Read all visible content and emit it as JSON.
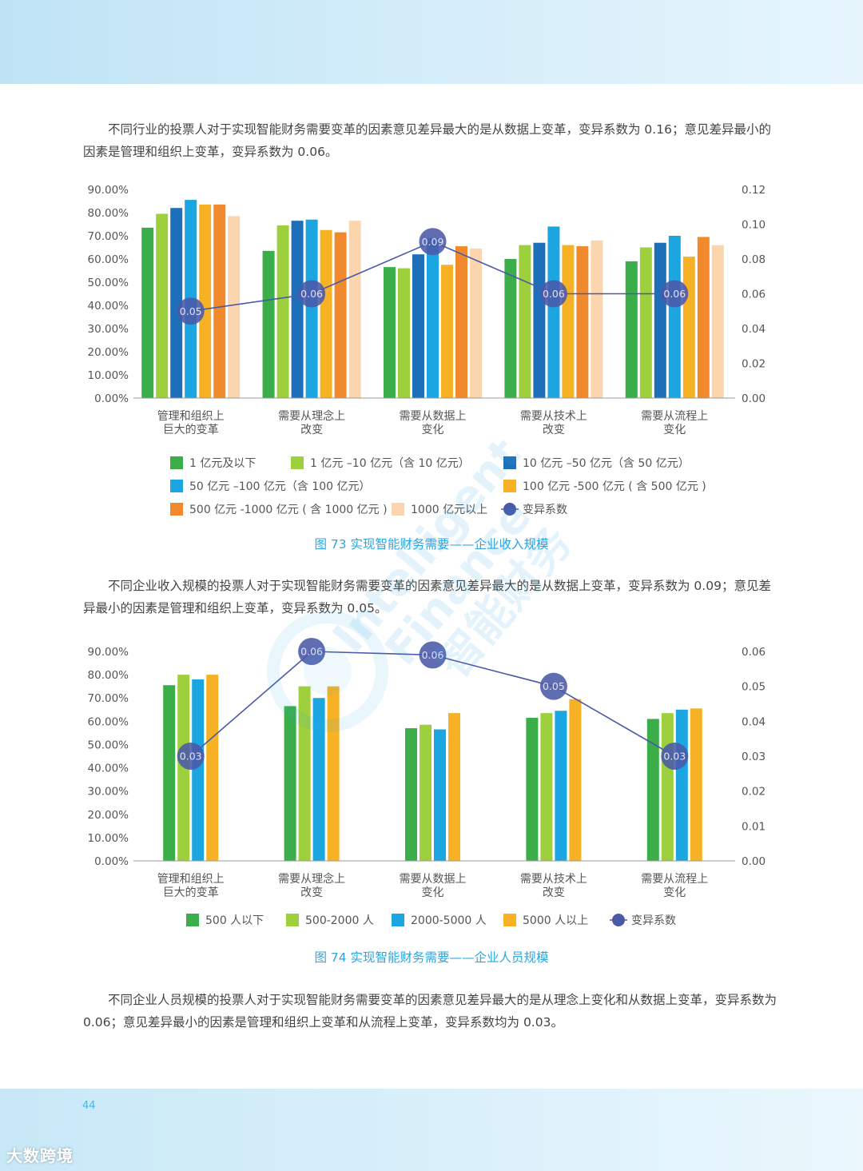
{
  "page_number": "44",
  "logo_text": "大数跨境",
  "watermark": {
    "line1": "Intelligent",
    "line2": "Finance",
    "line3": "智能财务"
  },
  "paragraphs": {
    "p1": "不同行业的投票人对于实现智能财务需要变革的因素意见差异最大的是从数据上变革，变异系数为 0.16；意见差异最小的因素是管理和组织上变革，变异系数为 0.06。",
    "p2": "不同企业收入规模的投票人对于实现智能财务需要变革的因素意见差异最大的是从数据上变革，变异系数为 0.09；意见差异最小的因素是管理和组织上变革，变异系数为 0.05。",
    "p3": "不同企业人员规模的投票人对于实现智能财务需要变革的因素意见差异最大的是从理念上变化和从数据上变革，变异系数为 0.06；意见差异最小的因素是管理和组织上变革和从流程上变革，变异系数均为 0.03。"
  },
  "captions": {
    "fig73": "图 73  实现智能财务需要——企业收入规模",
    "fig74": "图 74  实现智能财务需要——企业人员规模"
  },
  "chart_data": [
    {
      "type": "bar",
      "categories": [
        [
          "管理和组织上",
          "巨大的变革"
        ],
        [
          "需要从理念上",
          "改变"
        ],
        [
          "需要从数据上",
          "变化"
        ],
        [
          "需要从技术上",
          "改变"
        ],
        [
          "需要从流程上",
          "变化"
        ]
      ],
      "y_left": {
        "min": 0,
        "max": 90,
        "ticks": [
          "0.00%",
          "10.00%",
          "20.00%",
          "30.00%",
          "40.00%",
          "50.00%",
          "60.00%",
          "70.00%",
          "80.00%",
          "90.00%"
        ]
      },
      "y_right": {
        "min": 0,
        "max": 0.12,
        "ticks": [
          "0.00",
          "0.02",
          "0.04",
          "0.06",
          "0.08",
          "0.10",
          "0.12"
        ]
      },
      "series": [
        {
          "name": "1 亿元及以下",
          "color": "#3cae49",
          "values": [
            73.5,
            63.5,
            56.5,
            60,
            59
          ]
        },
        {
          "name": "1 亿元 –10 亿元（含 10 亿元）",
          "color": "#9ecf3c",
          "values": [
            79.5,
            74.5,
            56,
            66,
            65
          ]
        },
        {
          "name": "10 亿元 –50 亿元（含 50 亿元）",
          "color": "#1e6fba",
          "values": [
            82,
            76.5,
            62,
            67,
            67
          ]
        },
        {
          "name": "50 亿元 –100 亿元（含 100 亿元）",
          "color": "#1ba6e2",
          "values": [
            85.5,
            77,
            69,
            74,
            70
          ]
        },
        {
          "name": "100 亿元 -500 亿元 ( 含 500 亿元 )",
          "color": "#f6b124",
          "values": [
            83.5,
            72.5,
            57.5,
            66,
            61
          ]
        },
        {
          "name": "500 亿元 -1000 亿元 ( 含 1000 亿元 )",
          "color": "#f08a2c",
          "values": [
            83.5,
            71.5,
            65.5,
            65.5,
            69.5
          ]
        },
        {
          "name": "1000 亿元以上",
          "color": "#fad5ad",
          "values": [
            78.5,
            76.5,
            64.5,
            68,
            66
          ]
        }
      ],
      "line": {
        "name": "变异系数",
        "color": "#4a59a8",
        "values": [
          0.05,
          0.06,
          0.09,
          0.06,
          0.06
        ],
        "labels": [
          "0.05",
          "0.06",
          "0.09",
          "0.06",
          "0.06"
        ]
      }
    },
    {
      "type": "bar",
      "categories": [
        [
          "管理和组织上",
          "巨大的变革"
        ],
        [
          "需要从理念上",
          "改变"
        ],
        [
          "需要从数据上",
          "变化"
        ],
        [
          "需要从技术上",
          "改变"
        ],
        [
          "需要从流程上",
          "变化"
        ]
      ],
      "y_left": {
        "min": 0,
        "max": 90,
        "ticks": [
          "0.00%",
          "10.00%",
          "20.00%",
          "30.00%",
          "40.00%",
          "50.00%",
          "60.00%",
          "70.00%",
          "80.00%",
          "90.00%"
        ]
      },
      "y_right": {
        "min": 0,
        "max": 0.06,
        "ticks": [
          "0.00",
          "0.01",
          "0.02",
          "0.03",
          "0.04",
          "0.05",
          "0.06"
        ]
      },
      "series": [
        {
          "name": "500 人以下",
          "color": "#3cae49",
          "values": [
            75.5,
            66.5,
            57,
            61.5,
            61
          ]
        },
        {
          "name": "500-2000 人",
          "color": "#9ecf3c",
          "values": [
            80,
            75,
            58.5,
            63.5,
            63.5
          ]
        },
        {
          "name": "2000-5000 人",
          "color": "#1ba6e2",
          "values": [
            78,
            70,
            56.5,
            64.5,
            65
          ]
        },
        {
          "name": "5000 人以上",
          "color": "#f6b124",
          "values": [
            80,
            75,
            63.5,
            69.5,
            65.5
          ]
        }
      ],
      "line": {
        "name": "变异系数",
        "color": "#4a59a8",
        "values": [
          0.03,
          0.06,
          0.059,
          0.05,
          0.03
        ],
        "labels": [
          "0.03",
          "0.06",
          "0.06",
          "0.05",
          "0.03"
        ]
      }
    }
  ]
}
